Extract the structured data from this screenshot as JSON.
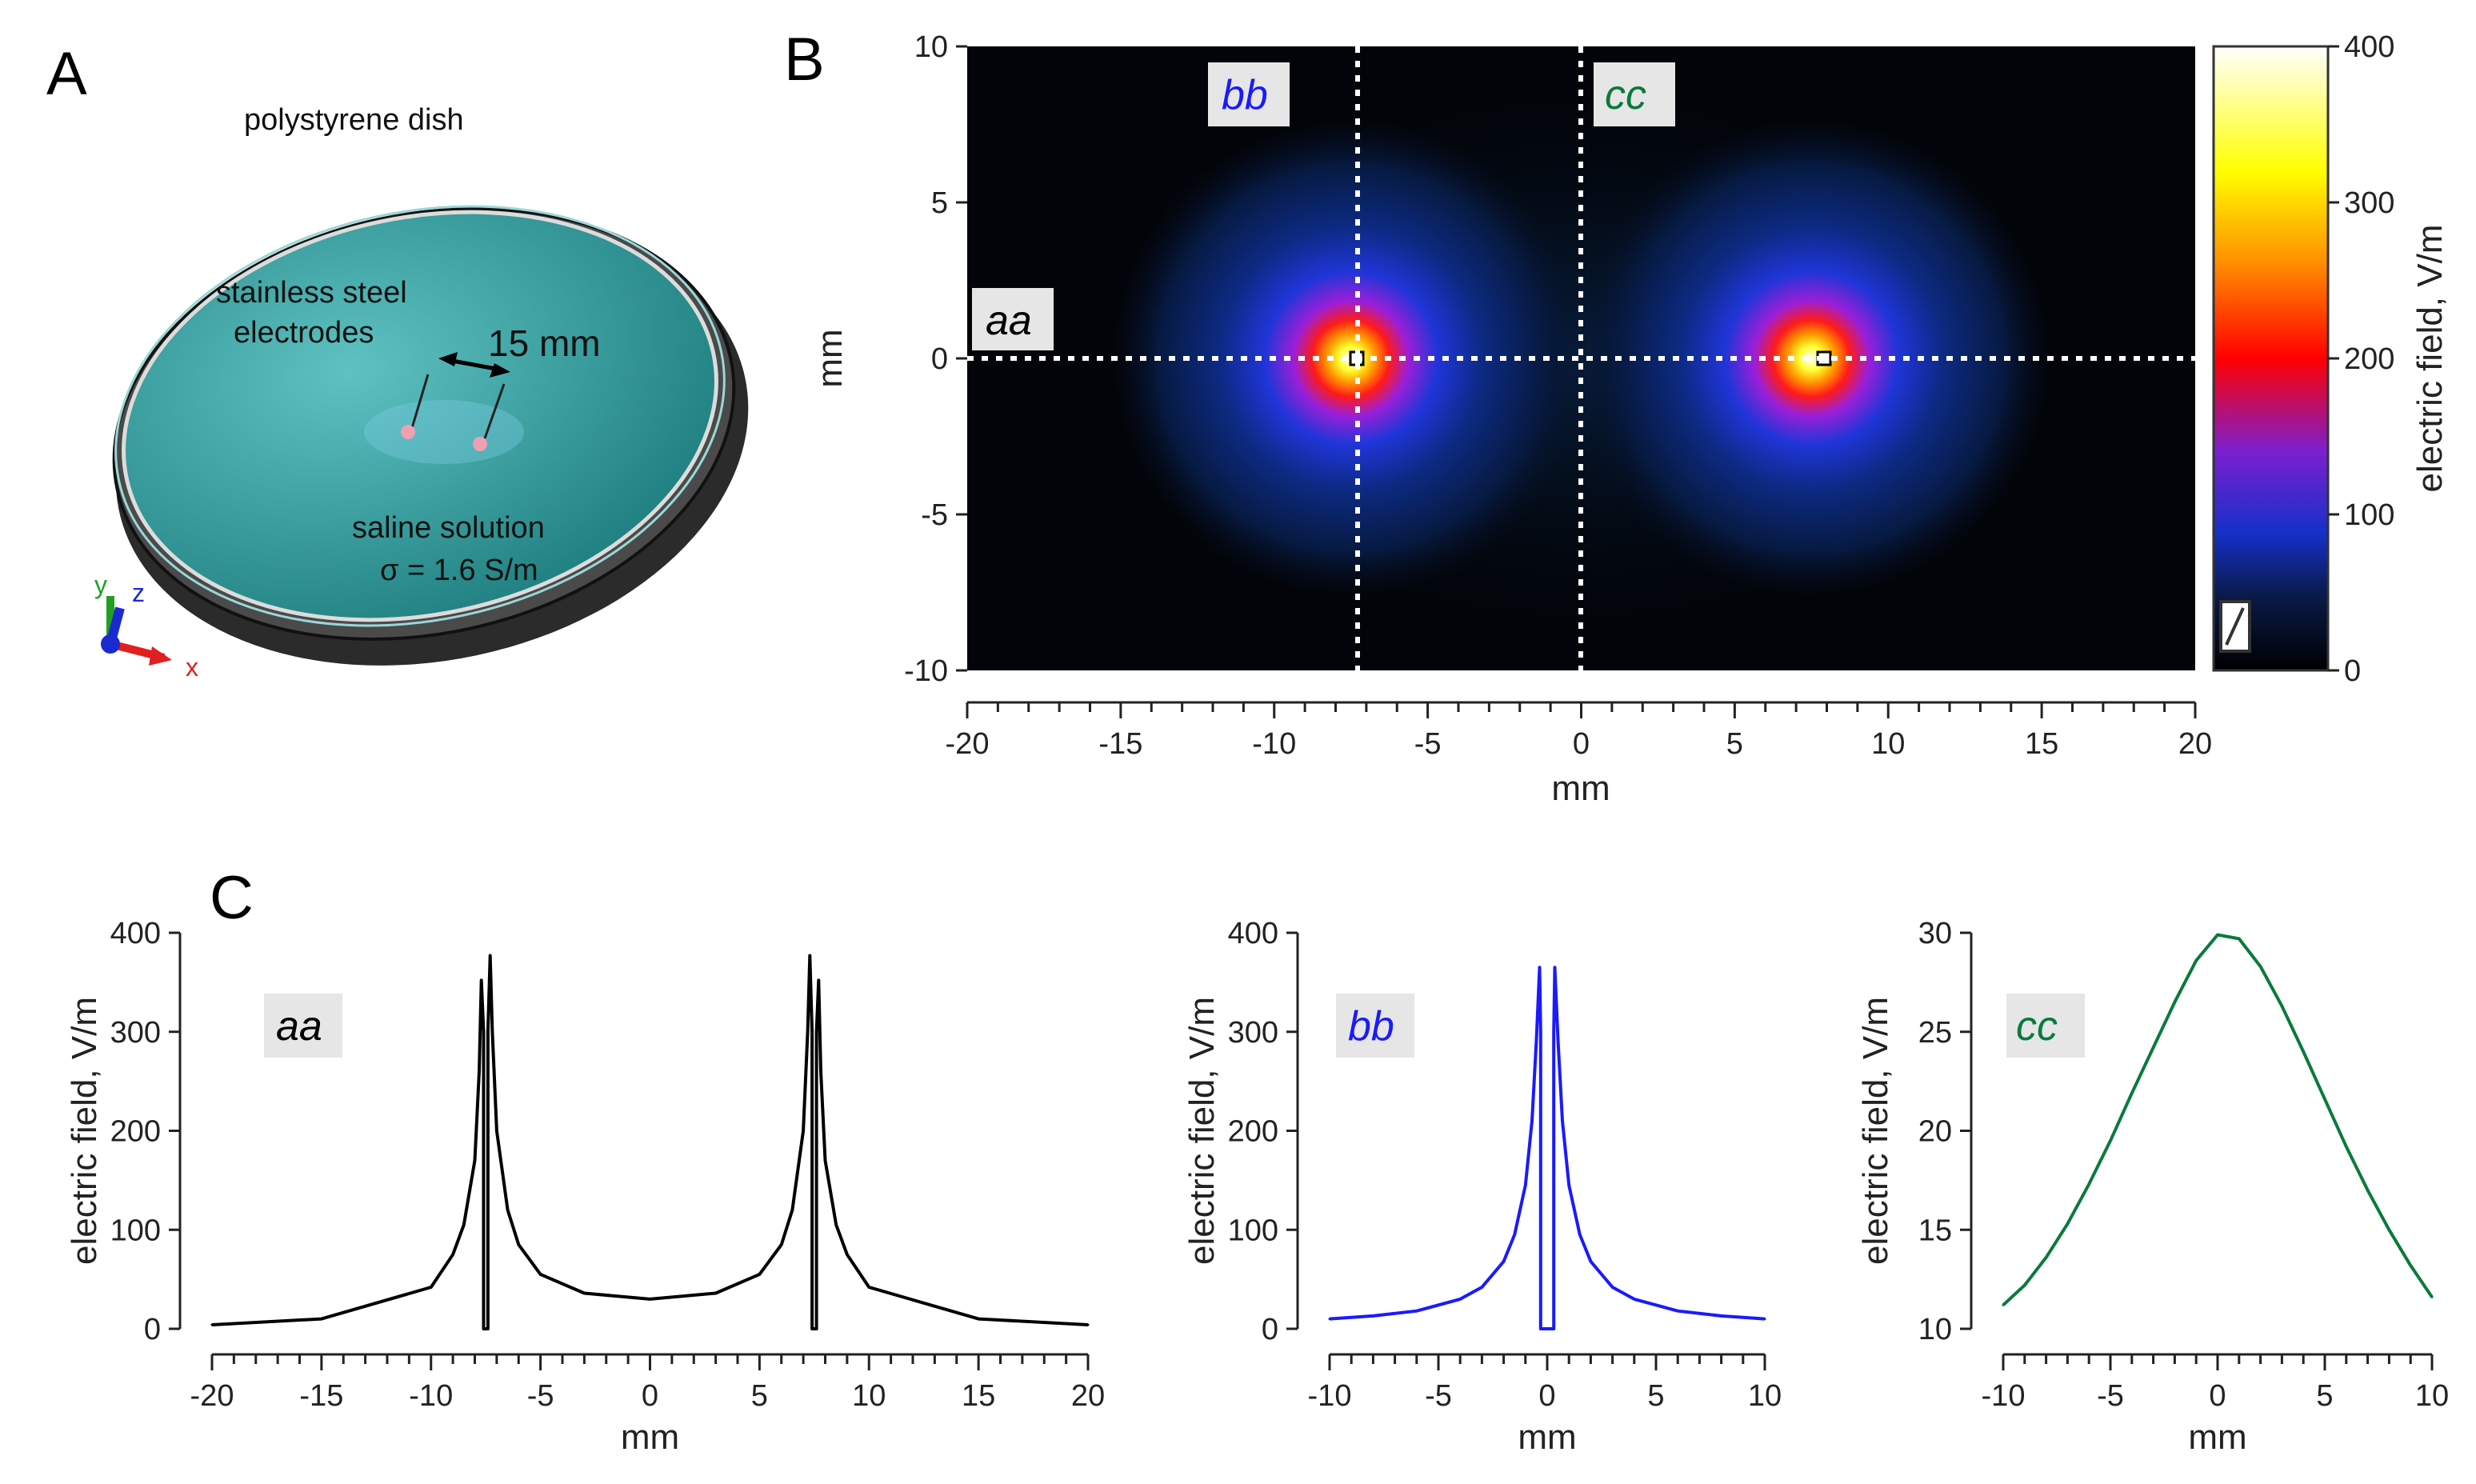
{
  "panels": {
    "a": "A",
    "b": "B",
    "c": "C"
  },
  "dish": {
    "title": "polystyrene dish",
    "electrodes_line1": "stainless steel",
    "electrodes_line2": "electrodes",
    "spacing": "15 mm",
    "solution_line1": "saline solution",
    "solution_line2": "σ = 1.6 S/m",
    "axis_x": "x",
    "axis_y": "y",
    "axis_z": "z",
    "colors": {
      "dish_wall": "#3c3c3c",
      "saline": "#2e9a9a",
      "rim": "#d8d8d8"
    }
  },
  "tags": {
    "aa": "aa",
    "bb": "bb",
    "cc": "cc",
    "colors": {
      "aa": "#000000",
      "bb": "#1a1aff",
      "cc": "#0a7a3c"
    }
  },
  "chart_data": [
    {
      "type": "heatmap",
      "id": "B",
      "xlabel": "mm",
      "ylabel": "mm",
      "xlim": [
        -20,
        20
      ],
      "ylim": [
        -10,
        10
      ],
      "xticks": [
        -20,
        -15,
        -10,
        -5,
        0,
        5,
        10,
        15,
        20
      ],
      "yticks": [
        -10,
        -5,
        0,
        5,
        10
      ],
      "sources": [
        {
          "x": -7.5,
          "y": 0
        },
        {
          "x": 7.5,
          "y": 0
        }
      ],
      "peak_value": 400,
      "cut_lines": [
        {
          "name": "aa",
          "orientation": "horizontal",
          "at": 0
        },
        {
          "name": "bb",
          "orientation": "vertical",
          "at": -7.5
        },
        {
          "name": "cc",
          "orientation": "vertical",
          "at": 0
        }
      ],
      "colorbar": {
        "label": "electric field, V/m",
        "range": [
          0,
          400
        ],
        "ticks": [
          0,
          100,
          200,
          300,
          400
        ],
        "colormap": [
          "#000000",
          "#0a1a4a",
          "#1530c8",
          "#7a1fd0",
          "#ff0000",
          "#ff8c00",
          "#ffff00",
          "#ffffff"
        ]
      }
    },
    {
      "type": "line",
      "id": "aa",
      "xlabel": "mm",
      "ylabel": "electric field, V/m",
      "xlim": [
        -20,
        20
      ],
      "ylim": [
        0,
        400
      ],
      "xticks": [
        -20,
        -15,
        -10,
        -5,
        0,
        5,
        10,
        15,
        20
      ],
      "yticks": [
        0,
        100,
        200,
        300,
        400
      ],
      "color": "#000000",
      "x": [
        -20,
        -15,
        -10,
        -9,
        -8.5,
        -8,
        -7.8,
        -7.7,
        -7.6,
        -7.6,
        -7.4,
        -7.4,
        -7.3,
        -7.2,
        -7.0,
        -6.5,
        -6,
        -5,
        -3,
        0,
        3,
        5,
        6,
        6.5,
        7.0,
        7.2,
        7.3,
        7.4,
        7.4,
        7.6,
        7.6,
        7.7,
        7.8,
        8,
        8.5,
        9,
        10,
        15,
        20
      ],
      "y": [
        4,
        10,
        42,
        75,
        105,
        170,
        260,
        352,
        300,
        0,
        0,
        300,
        377,
        300,
        200,
        120,
        85,
        55,
        36,
        30,
        36,
        55,
        85,
        120,
        200,
        300,
        377,
        300,
        0,
        0,
        300,
        352,
        260,
        170,
        105,
        75,
        42,
        10,
        4
      ]
    },
    {
      "type": "line",
      "id": "bb",
      "xlabel": "mm",
      "ylabel": "electric field, V/m",
      "xlim": [
        -10,
        10
      ],
      "ylim": [
        0,
        400
      ],
      "xticks": [
        -10,
        -5,
        0,
        5,
        10
      ],
      "yticks": [
        0,
        100,
        200,
        300,
        400
      ],
      "color": "#1a1aff",
      "x": [
        -10,
        -8,
        -6,
        -4,
        -3,
        -2,
        -1.5,
        -1,
        -0.7,
        -0.5,
        -0.35,
        -0.3,
        -0.3,
        0.3,
        0.3,
        0.35,
        0.5,
        0.7,
        1,
        1.5,
        2,
        3,
        4,
        6,
        8,
        10
      ],
      "y": [
        10,
        13,
        18,
        30,
        42,
        68,
        95,
        145,
        210,
        290,
        365,
        300,
        0,
        0,
        300,
        365,
        290,
        210,
        145,
        95,
        68,
        42,
        30,
        18,
        13,
        10
      ]
    },
    {
      "type": "line",
      "id": "cc",
      "xlabel": "mm",
      "ylabel": "electric field, V/m",
      "xlim": [
        -10,
        10
      ],
      "ylim": [
        10,
        30
      ],
      "xticks": [
        -10,
        -5,
        0,
        5,
        10
      ],
      "yticks": [
        10,
        15,
        20,
        25,
        30
      ],
      "color": "#0a7a3c",
      "x": [
        -10,
        -9,
        -8,
        -7,
        -6,
        -5,
        -4,
        -3,
        -2,
        -1,
        0,
        1,
        2,
        3,
        4,
        5,
        6,
        7,
        8,
        9,
        10
      ],
      "y": [
        11.2,
        12.2,
        13.6,
        15.3,
        17.3,
        19.5,
        21.9,
        24.2,
        26.5,
        28.6,
        29.9,
        29.7,
        28.3,
        26.3,
        24.0,
        21.6,
        19.2,
        17.0,
        15.0,
        13.2,
        11.6
      ]
    }
  ]
}
